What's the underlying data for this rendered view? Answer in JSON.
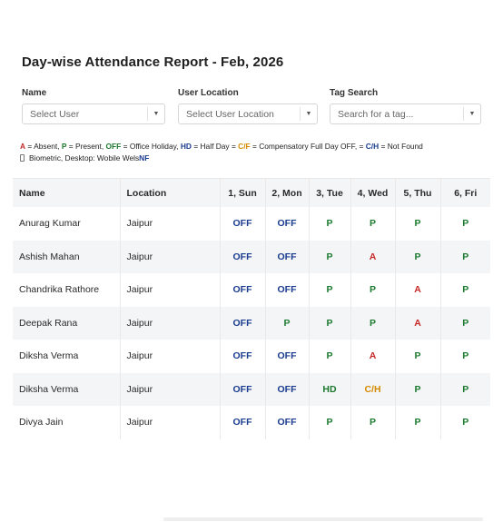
{
  "title": "Day-wise Attendance Report - Feb, 2026",
  "filters": [
    {
      "label": "Name",
      "placeholder": "Select User"
    },
    {
      "label": "User Location",
      "placeholder": "Select User Location"
    },
    {
      "label": "Tag Search",
      "placeholder": "Search for a tag..."
    }
  ],
  "legend": {
    "line1": [
      {
        "code": "A",
        "color": "#c62828",
        "text": " = Absent, "
      },
      {
        "code": "P",
        "color": "#1b7a2e",
        "text": " = Present, "
      },
      {
        "code": "OFF",
        "color": "#1b7a2e",
        "text": " = Office Holiday, "
      },
      {
        "code": "HD",
        "color": "#1a3c8f",
        "text": " =  Half Day = "
      },
      {
        "code": "C/F",
        "color": "#d48a00",
        "text": " = Compensatory Full Day OFF, = "
      },
      {
        "code": "C/H",
        "color": "#1a3c8f",
        "text": " = Not Found"
      }
    ],
    "line2_text": "Biometric, Desktop: Wobile Wels",
    "line2_code": "NF",
    "icon": "phone-icon"
  },
  "table": {
    "headers": [
      "Name",
      "Location",
      "1, Sun",
      "2, Mon",
      "3, Tue",
      "4, Wed",
      "5, Thu",
      "6, Fri"
    ],
    "rows": [
      {
        "name": "Anurag Kumar",
        "location": "Jaipur",
        "days": [
          "OFF",
          "OFF",
          "P",
          "P",
          "P",
          "P"
        ]
      },
      {
        "name": "Ashish Mahan",
        "location": "Jaipur",
        "days": [
          "OFF",
          "OFF",
          "P",
          "A",
          "P",
          "P"
        ]
      },
      {
        "name": "Chandrika Rathore",
        "location": "Jaipur",
        "days": [
          "OFF",
          "OFF",
          "P",
          "P",
          "A",
          "P"
        ]
      },
      {
        "name": "Deepak Rana",
        "location": "Jaipur",
        "days": [
          "OFF",
          "P",
          "P",
          "P",
          "A",
          "P"
        ]
      },
      {
        "name": "Diksha Verma",
        "location": "Jaipur",
        "days": [
          "OFF",
          "OFF",
          "P",
          "A",
          "P",
          "P"
        ]
      },
      {
        "name": "Diksha Verma",
        "location": "Jaipur",
        "days": [
          "OFF",
          "OFF",
          "HD",
          "C/H",
          "P",
          "P"
        ]
      },
      {
        "name": "Divya Jain",
        "location": "Jaipur",
        "days": [
          "OFF",
          "OFF",
          "P",
          "P",
          "P",
          "P"
        ]
      }
    ]
  },
  "status_colors": {
    "OFF": "#1a3c8f",
    "P": "#1b7a2e",
    "A": "#c62828",
    "HD": "#1b7a2e",
    "C/H": "#d48a00"
  }
}
